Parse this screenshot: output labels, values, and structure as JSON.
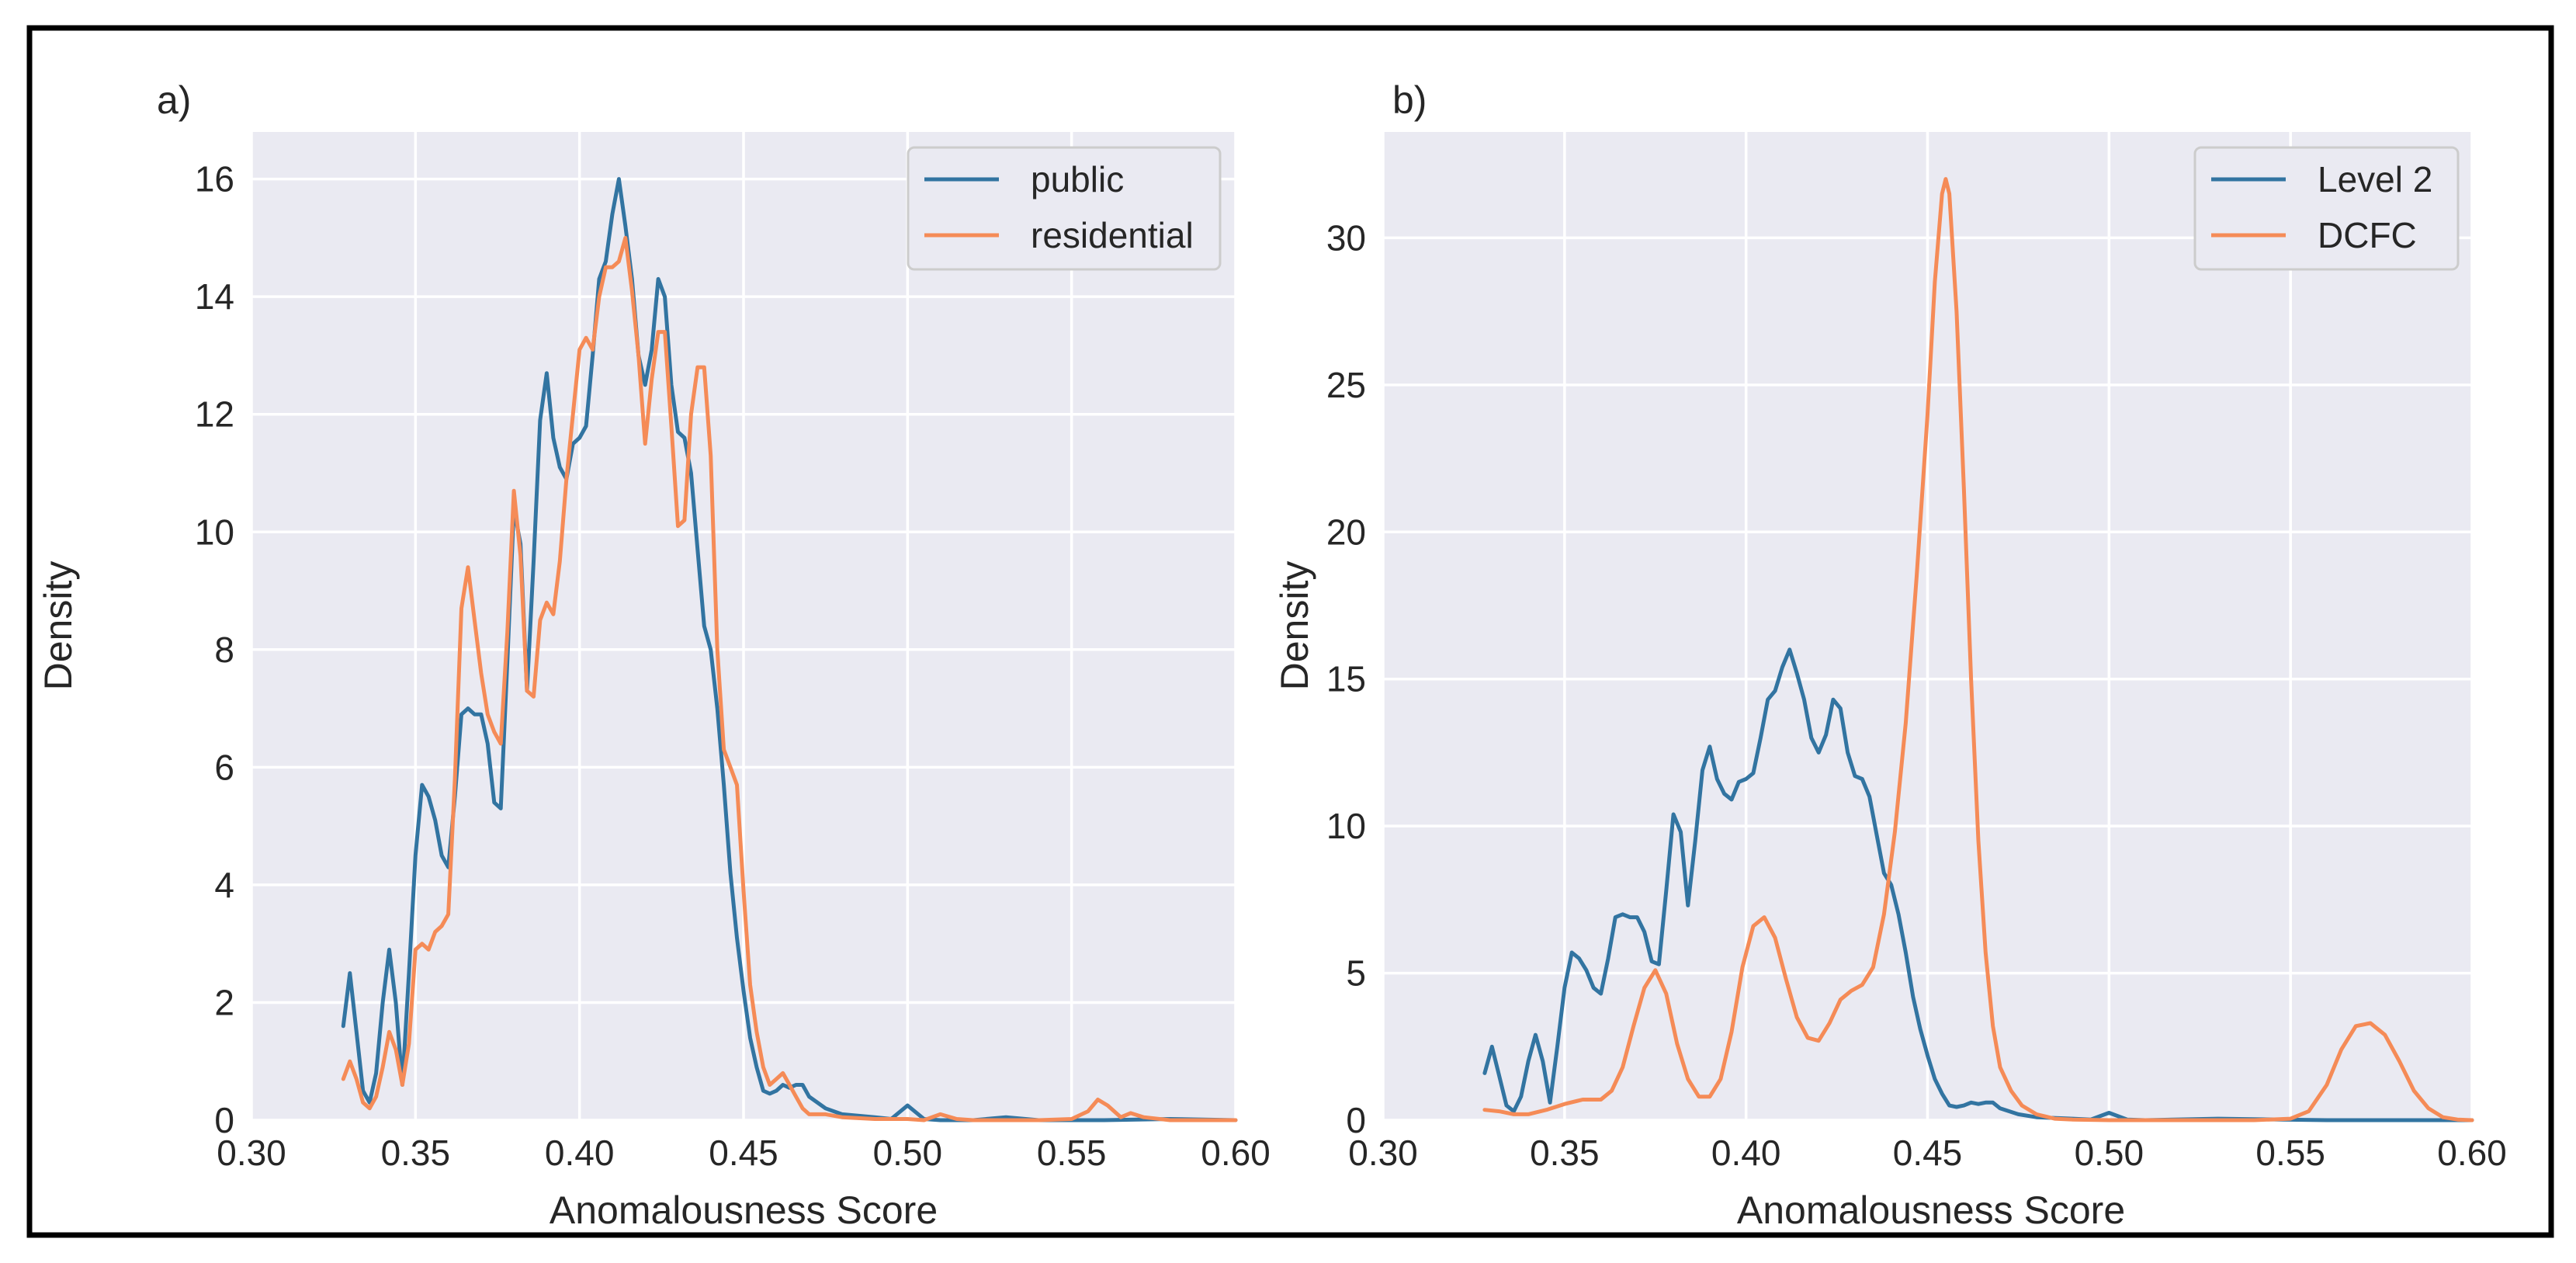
{
  "figure": {
    "colors": {
      "series_1": "#3274a1",
      "series_2": "#f58b57"
    }
  },
  "chart_data": [
    {
      "type": "line",
      "panel_label": "a)",
      "xlabel": "Anomalousness Score",
      "ylabel": "Density",
      "xlim": [
        0.3,
        0.6
      ],
      "ylim": [
        0,
        16.8
      ],
      "xticks": [
        0.3,
        0.35,
        0.4,
        0.45,
        0.5,
        0.55,
        0.6
      ],
      "xtick_labels": [
        "0.30",
        "0.35",
        "0.40",
        "0.45",
        "0.50",
        "0.55",
        "0.60"
      ],
      "yticks": [
        0,
        2,
        4,
        6,
        8,
        10,
        12,
        14,
        16
      ],
      "ytick_labels": [
        "0",
        "2",
        "4",
        "6",
        "8",
        "10",
        "12",
        "14",
        "16"
      ],
      "legend_position": "top-right",
      "series": [
        {
          "name": "public",
          "color": "#3274a1",
          "x": [
            0.328,
            0.33,
            0.332,
            0.334,
            0.336,
            0.338,
            0.34,
            0.342,
            0.344,
            0.346,
            0.348,
            0.35,
            0.352,
            0.354,
            0.356,
            0.358,
            0.36,
            0.362,
            0.364,
            0.366,
            0.368,
            0.37,
            0.372,
            0.374,
            0.376,
            0.378,
            0.38,
            0.382,
            0.384,
            0.386,
            0.388,
            0.39,
            0.392,
            0.394,
            0.396,
            0.398,
            0.4,
            0.402,
            0.404,
            0.406,
            0.408,
            0.41,
            0.412,
            0.414,
            0.416,
            0.418,
            0.42,
            0.422,
            0.424,
            0.426,
            0.428,
            0.43,
            0.432,
            0.434,
            0.436,
            0.438,
            0.44,
            0.442,
            0.444,
            0.446,
            0.448,
            0.45,
            0.452,
            0.454,
            0.456,
            0.458,
            0.46,
            0.462,
            0.464,
            0.466,
            0.468,
            0.47,
            0.475,
            0.48,
            0.49,
            0.495,
            0.5,
            0.505,
            0.51,
            0.52,
            0.53,
            0.54,
            0.56,
            0.58,
            0.6
          ],
          "y": [
            1.6,
            2.5,
            1.5,
            0.5,
            0.3,
            0.8,
            2.0,
            2.9,
            2.0,
            0.6,
            2.5,
            4.5,
            5.7,
            5.5,
            5.1,
            4.5,
            4.3,
            5.5,
            6.9,
            7.0,
            6.9,
            6.9,
            6.4,
            5.4,
            5.3,
            7.8,
            10.4,
            9.8,
            7.3,
            9.5,
            11.9,
            12.7,
            11.6,
            11.1,
            10.9,
            11.5,
            11.6,
            11.8,
            13.0,
            14.3,
            14.6,
            15.4,
            16.0,
            15.2,
            14.3,
            13.0,
            12.5,
            13.1,
            14.3,
            14.0,
            12.5,
            11.7,
            11.6,
            11.0,
            9.7,
            8.4,
            8.0,
            7.0,
            5.7,
            4.2,
            3.1,
            2.2,
            1.4,
            0.9,
            0.5,
            0.45,
            0.5,
            0.6,
            0.55,
            0.6,
            0.6,
            0.4,
            0.2,
            0.1,
            0.05,
            0.02,
            0.25,
            0.02,
            0.0,
            0.0,
            0.05,
            0.0,
            0.0,
            0.02,
            0.0
          ]
        },
        {
          "name": "residential",
          "color": "#f58b57",
          "x": [
            0.328,
            0.33,
            0.332,
            0.334,
            0.336,
            0.338,
            0.34,
            0.342,
            0.344,
            0.346,
            0.348,
            0.35,
            0.352,
            0.354,
            0.356,
            0.358,
            0.36,
            0.362,
            0.364,
            0.366,
            0.368,
            0.37,
            0.372,
            0.374,
            0.376,
            0.378,
            0.38,
            0.382,
            0.384,
            0.386,
            0.388,
            0.39,
            0.392,
            0.394,
            0.396,
            0.398,
            0.4,
            0.402,
            0.404,
            0.406,
            0.408,
            0.41,
            0.412,
            0.414,
            0.416,
            0.418,
            0.42,
            0.422,
            0.424,
            0.426,
            0.428,
            0.43,
            0.432,
            0.434,
            0.436,
            0.438,
            0.44,
            0.442,
            0.444,
            0.446,
            0.448,
            0.45,
            0.452,
            0.454,
            0.456,
            0.458,
            0.46,
            0.462,
            0.464,
            0.466,
            0.468,
            0.47,
            0.475,
            0.48,
            0.49,
            0.5,
            0.505,
            0.51,
            0.515,
            0.52,
            0.54,
            0.55,
            0.555,
            0.558,
            0.561,
            0.565,
            0.568,
            0.572,
            0.58,
            0.6
          ],
          "y": [
            0.7,
            1.0,
            0.7,
            0.3,
            0.2,
            0.4,
            0.9,
            1.5,
            1.2,
            0.6,
            1.3,
            2.9,
            3.0,
            2.9,
            3.2,
            3.3,
            3.5,
            5.8,
            8.7,
            9.4,
            8.5,
            7.6,
            6.9,
            6.6,
            6.4,
            8.3,
            10.7,
            9.6,
            7.3,
            7.2,
            8.5,
            8.8,
            8.6,
            9.5,
            10.9,
            12.0,
            13.1,
            13.3,
            13.1,
            14.0,
            14.5,
            14.5,
            14.6,
            15.0,
            14.1,
            13.0,
            11.5,
            12.6,
            13.4,
            13.4,
            11.8,
            10.1,
            10.2,
            12.0,
            12.8,
            12.8,
            11.3,
            8.0,
            6.3,
            6.0,
            5.7,
            3.9,
            2.3,
            1.5,
            0.9,
            0.6,
            0.7,
            0.8,
            0.6,
            0.4,
            0.2,
            0.1,
            0.1,
            0.05,
            0.02,
            0.02,
            0.0,
            0.1,
            0.02,
            0.0,
            0.0,
            0.02,
            0.15,
            0.35,
            0.25,
            0.05,
            0.12,
            0.05,
            0.0,
            0.0
          ]
        }
      ]
    },
    {
      "type": "line",
      "panel_label": "b)",
      "xlabel": "Anomalousness Score",
      "ylabel": "Density",
      "xlim": [
        0.3,
        0.6
      ],
      "ylim": [
        0,
        33.6
      ],
      "xticks": [
        0.3,
        0.35,
        0.4,
        0.45,
        0.5,
        0.55,
        0.6
      ],
      "xtick_labels": [
        "0.30",
        "0.35",
        "0.40",
        "0.45",
        "0.50",
        "0.55",
        "0.60"
      ],
      "yticks": [
        0,
        5,
        10,
        15,
        20,
        25,
        30
      ],
      "ytick_labels": [
        "0",
        "5",
        "10",
        "15",
        "20",
        "25",
        "30"
      ],
      "legend_position": "top-right",
      "series": [
        {
          "name": "Level 2",
          "color": "#3274a1",
          "x": [
            0.328,
            0.33,
            0.332,
            0.334,
            0.336,
            0.338,
            0.34,
            0.342,
            0.344,
            0.346,
            0.348,
            0.35,
            0.352,
            0.354,
            0.356,
            0.358,
            0.36,
            0.362,
            0.364,
            0.366,
            0.368,
            0.37,
            0.372,
            0.374,
            0.376,
            0.378,
            0.38,
            0.382,
            0.384,
            0.386,
            0.388,
            0.39,
            0.392,
            0.394,
            0.396,
            0.398,
            0.4,
            0.402,
            0.404,
            0.406,
            0.408,
            0.41,
            0.412,
            0.414,
            0.416,
            0.418,
            0.42,
            0.422,
            0.424,
            0.426,
            0.428,
            0.43,
            0.432,
            0.434,
            0.436,
            0.438,
            0.44,
            0.442,
            0.444,
            0.446,
            0.448,
            0.45,
            0.452,
            0.454,
            0.456,
            0.458,
            0.46,
            0.462,
            0.464,
            0.466,
            0.468,
            0.47,
            0.475,
            0.48,
            0.49,
            0.495,
            0.5,
            0.505,
            0.51,
            0.53,
            0.56,
            0.6
          ],
          "y": [
            1.6,
            2.5,
            1.5,
            0.5,
            0.3,
            0.8,
            2.0,
            2.9,
            2.0,
            0.6,
            2.5,
            4.5,
            5.7,
            5.5,
            5.1,
            4.5,
            4.3,
            5.5,
            6.9,
            7.0,
            6.9,
            6.9,
            6.4,
            5.4,
            5.3,
            7.8,
            10.4,
            9.8,
            7.3,
            9.5,
            11.9,
            12.7,
            11.6,
            11.1,
            10.9,
            11.5,
            11.6,
            11.8,
            13.0,
            14.3,
            14.6,
            15.4,
            16.0,
            15.2,
            14.3,
            13.0,
            12.5,
            13.1,
            14.3,
            14.0,
            12.5,
            11.7,
            11.6,
            11.0,
            9.7,
            8.4,
            8.0,
            7.0,
            5.7,
            4.2,
            3.1,
            2.2,
            1.4,
            0.9,
            0.5,
            0.45,
            0.5,
            0.6,
            0.55,
            0.6,
            0.6,
            0.4,
            0.2,
            0.1,
            0.05,
            0.02,
            0.25,
            0.02,
            0.0,
            0.05,
            0.0,
            0.0
          ]
        },
        {
          "name": "DCFC",
          "color": "#f58b57",
          "x": [
            0.328,
            0.332,
            0.336,
            0.34,
            0.345,
            0.35,
            0.355,
            0.36,
            0.363,
            0.366,
            0.369,
            0.372,
            0.375,
            0.378,
            0.381,
            0.384,
            0.387,
            0.39,
            0.393,
            0.396,
            0.399,
            0.402,
            0.405,
            0.408,
            0.411,
            0.414,
            0.417,
            0.42,
            0.423,
            0.426,
            0.429,
            0.432,
            0.435,
            0.438,
            0.441,
            0.444,
            0.447,
            0.45,
            0.452,
            0.454,
            0.455,
            0.456,
            0.458,
            0.46,
            0.462,
            0.464,
            0.466,
            0.468,
            0.47,
            0.473,
            0.476,
            0.48,
            0.485,
            0.49,
            0.5,
            0.51,
            0.52,
            0.53,
            0.54,
            0.55,
            0.555,
            0.56,
            0.564,
            0.568,
            0.572,
            0.576,
            0.58,
            0.584,
            0.588,
            0.592,
            0.596,
            0.6
          ],
          "y": [
            0.35,
            0.3,
            0.2,
            0.2,
            0.35,
            0.55,
            0.7,
            0.7,
            1.0,
            1.8,
            3.2,
            4.5,
            5.1,
            4.3,
            2.6,
            1.4,
            0.8,
            0.8,
            1.4,
            3.0,
            5.2,
            6.6,
            6.9,
            6.2,
            4.8,
            3.5,
            2.8,
            2.7,
            3.3,
            4.1,
            4.4,
            4.6,
            5.2,
            7.0,
            9.8,
            13.5,
            18.5,
            24.0,
            28.5,
            31.5,
            32.0,
            31.5,
            27.5,
            21.5,
            15.0,
            9.5,
            5.7,
            3.2,
            1.8,
            1.0,
            0.5,
            0.2,
            0.05,
            0.02,
            0.0,
            0.0,
            0.0,
            0.0,
            0.0,
            0.05,
            0.3,
            1.2,
            2.4,
            3.2,
            3.3,
            2.9,
            2.0,
            1.0,
            0.4,
            0.1,
            0.02,
            0.0
          ]
        }
      ]
    }
  ]
}
